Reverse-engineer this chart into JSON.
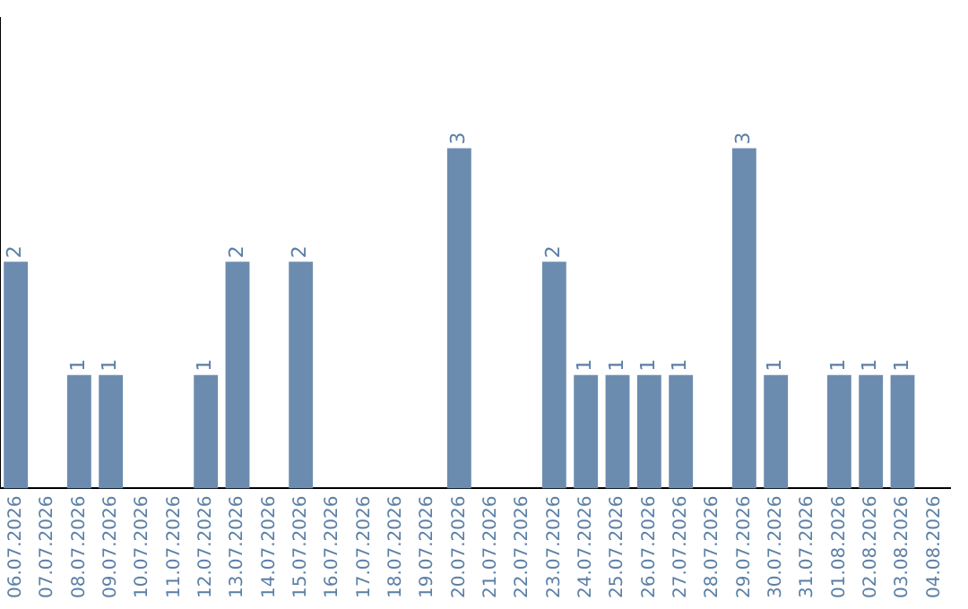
{
  "chart_data": {
    "type": "bar",
    "categories": [
      "06.07.2026",
      "07.07.2026",
      "08.07.2026",
      "09.07.2026",
      "10.07.2026",
      "11.07.2026",
      "12.07.2026",
      "13.07.2026",
      "14.07.2026",
      "15.07.2026",
      "16.07.2026",
      "17.07.2026",
      "18.07.2026",
      "19.07.2026",
      "20.07.2026",
      "21.07.2026",
      "22.07.2026",
      "23.07.2026",
      "24.07.2026",
      "25.07.2026",
      "26.07.2026",
      "27.07.2026",
      "28.07.2026",
      "29.07.2026",
      "30.07.2026",
      "31.07.2026",
      "01.08.2026",
      "02.08.2026",
      "03.08.2026",
      "04.08.2026"
    ],
    "values": [
      2,
      0,
      1,
      1,
      0,
      0,
      1,
      2,
      0,
      2,
      0,
      0,
      0,
      0,
      3,
      0,
      0,
      2,
      1,
      1,
      1,
      1,
      0,
      3,
      1,
      0,
      1,
      1,
      1,
      0
    ],
    "value_labels": [
      "2",
      null,
      "1",
      "1",
      null,
      null,
      "1",
      "2",
      null,
      "2",
      null,
      null,
      null,
      null,
      "3",
      null,
      null,
      "2",
      "1",
      "1",
      "1",
      "1",
      null,
      "3",
      "1",
      null,
      "1",
      "1",
      "1",
      null
    ],
    "color": "#6c8caf",
    "ylim": [
      0,
      4.15
    ],
    "tick_labels": "x",
    "grid": false,
    "legend": false
  }
}
